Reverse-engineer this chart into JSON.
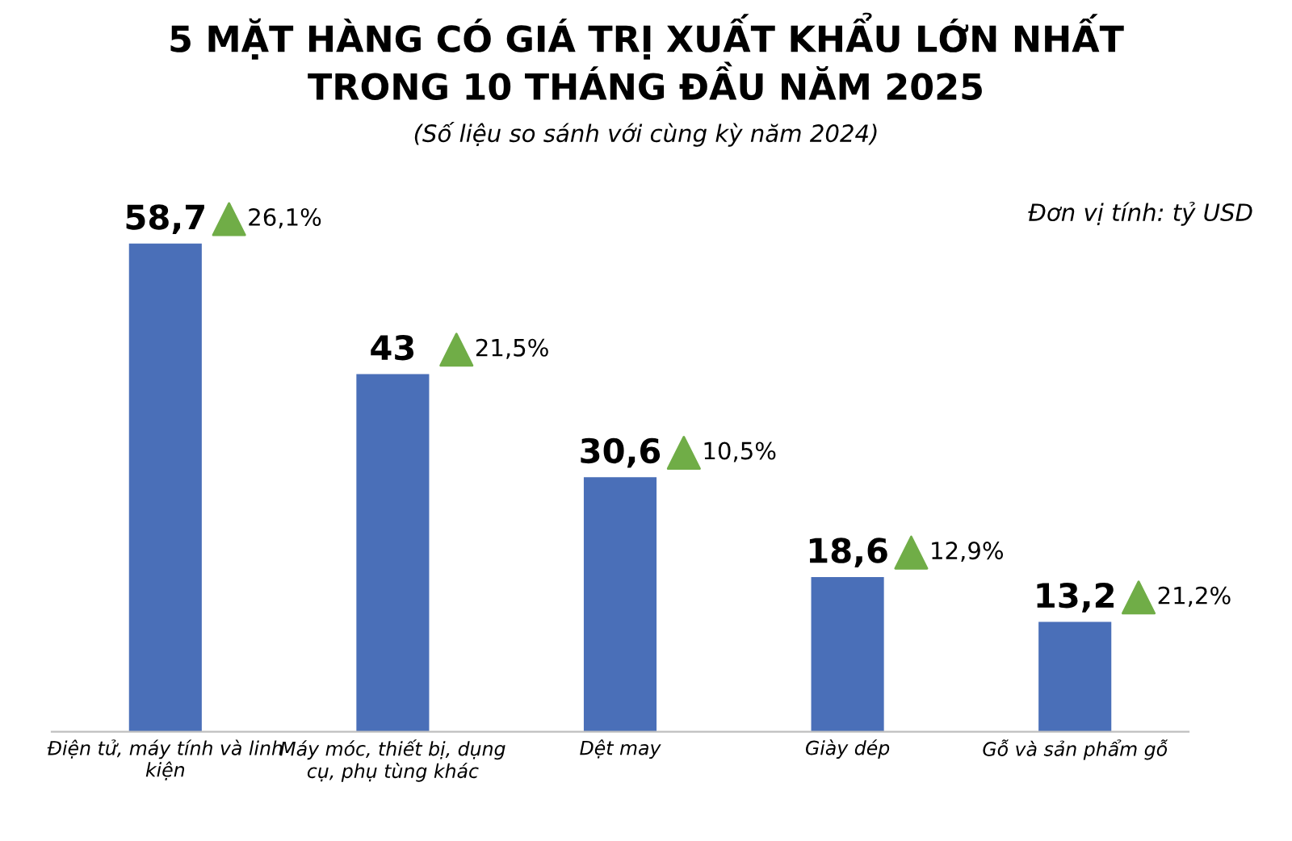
{
  "chart_data": {
    "type": "bar",
    "title": "5 MẶT HÀNG CÓ GIÁ TRỊ XUẤT KHẨU LỚN NHẤT\nTRONG 10 THÁNG ĐẦU NĂM 2025",
    "subtitle": "(Số liệu so sánh với cùng kỳ năm 2024)",
    "categories": [
      "Điện tử, máy tính và linh\nkiện",
      "Máy móc, thiết bị, dụng\ncụ, phụ tùng khác",
      "Dệt may",
      "Giày dép",
      "Gỗ và sản phẩm gỗ"
    ],
    "values": [
      58.7,
      43,
      30.6,
      18.6,
      13.2
    ],
    "value_labels": [
      "58,7",
      "43",
      "30,6",
      "18,6",
      "13,2"
    ],
    "color": "#4a6fb8",
    "annotations": [
      "Đơn vị tính: tỷ USD",
      "26,1%",
      "21,5%",
      "10,5%",
      "12,9%",
      "21,2%"
    ],
    "grid": false,
    "legend": false
  }
}
